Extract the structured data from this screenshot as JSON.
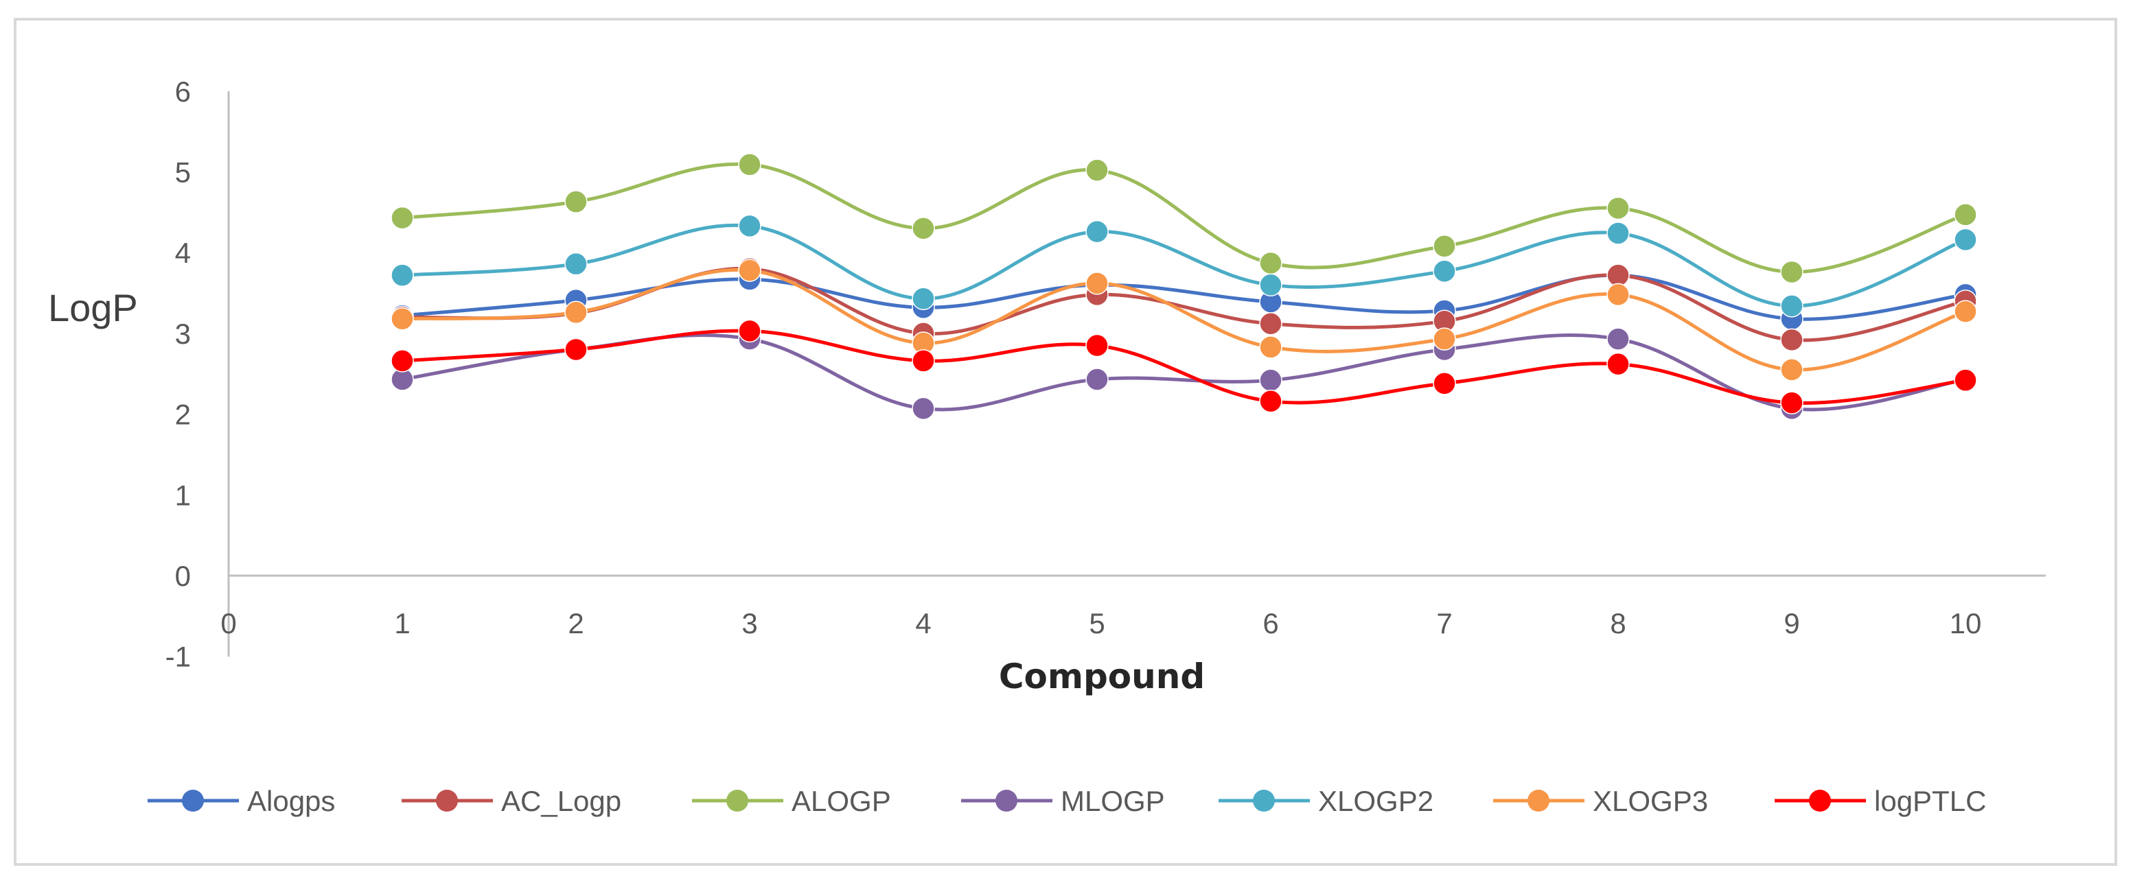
{
  "chart_data": {
    "type": "line",
    "title": "",
    "xlabel": "Compound",
    "ylabel": "LogP",
    "x": [
      1,
      2,
      3,
      4,
      5,
      6,
      7,
      8,
      9,
      10
    ],
    "x_ticks": [
      "0",
      "1",
      "2",
      "3",
      "4",
      "5",
      "6",
      "7",
      "8",
      "9",
      "10"
    ],
    "xlim": [
      0,
      10.5
    ],
    "y_ticks": [
      "-1",
      "0",
      "1",
      "2",
      "3",
      "4",
      "5",
      "6"
    ],
    "ylim": [
      -1,
      6
    ],
    "grid": false,
    "legend_position": "bottom",
    "series": [
      {
        "name": "Alogps",
        "color": "#4472c4",
        "values": [
          3.22,
          3.41,
          3.67,
          3.32,
          3.6,
          3.39,
          3.28,
          3.72,
          3.18,
          3.48
        ]
      },
      {
        "name": "AC_Logp",
        "color": "#c0504d",
        "values": [
          3.2,
          3.25,
          3.8,
          3.0,
          3.48,
          3.12,
          3.15,
          3.72,
          2.92,
          3.4
        ]
      },
      {
        "name": "ALOGP",
        "color": "#9bbb59",
        "values": [
          4.43,
          4.63,
          5.09,
          4.3,
          5.02,
          3.87,
          4.08,
          4.55,
          3.76,
          4.47
        ]
      },
      {
        "name": "MLOGP",
        "color": "#8064a2",
        "values": [
          2.43,
          2.8,
          2.93,
          2.07,
          2.43,
          2.42,
          2.8,
          2.93,
          2.07,
          2.43
        ]
      },
      {
        "name": "XLOGP2",
        "color": "#4bacc6",
        "values": [
          3.72,
          3.86,
          4.33,
          3.43,
          4.26,
          3.6,
          3.77,
          4.24,
          3.34,
          4.16
        ]
      },
      {
        "name": "XLOGP3",
        "color": "#f79646",
        "values": [
          3.18,
          3.26,
          3.78,
          2.88,
          3.62,
          2.83,
          2.93,
          3.48,
          2.55,
          3.27
        ]
      },
      {
        "name": "logPTLC",
        "color": "#ff0000",
        "values": [
          2.66,
          2.8,
          3.03,
          2.66,
          2.85,
          2.16,
          2.38,
          2.62,
          2.14,
          2.42
        ]
      }
    ]
  }
}
